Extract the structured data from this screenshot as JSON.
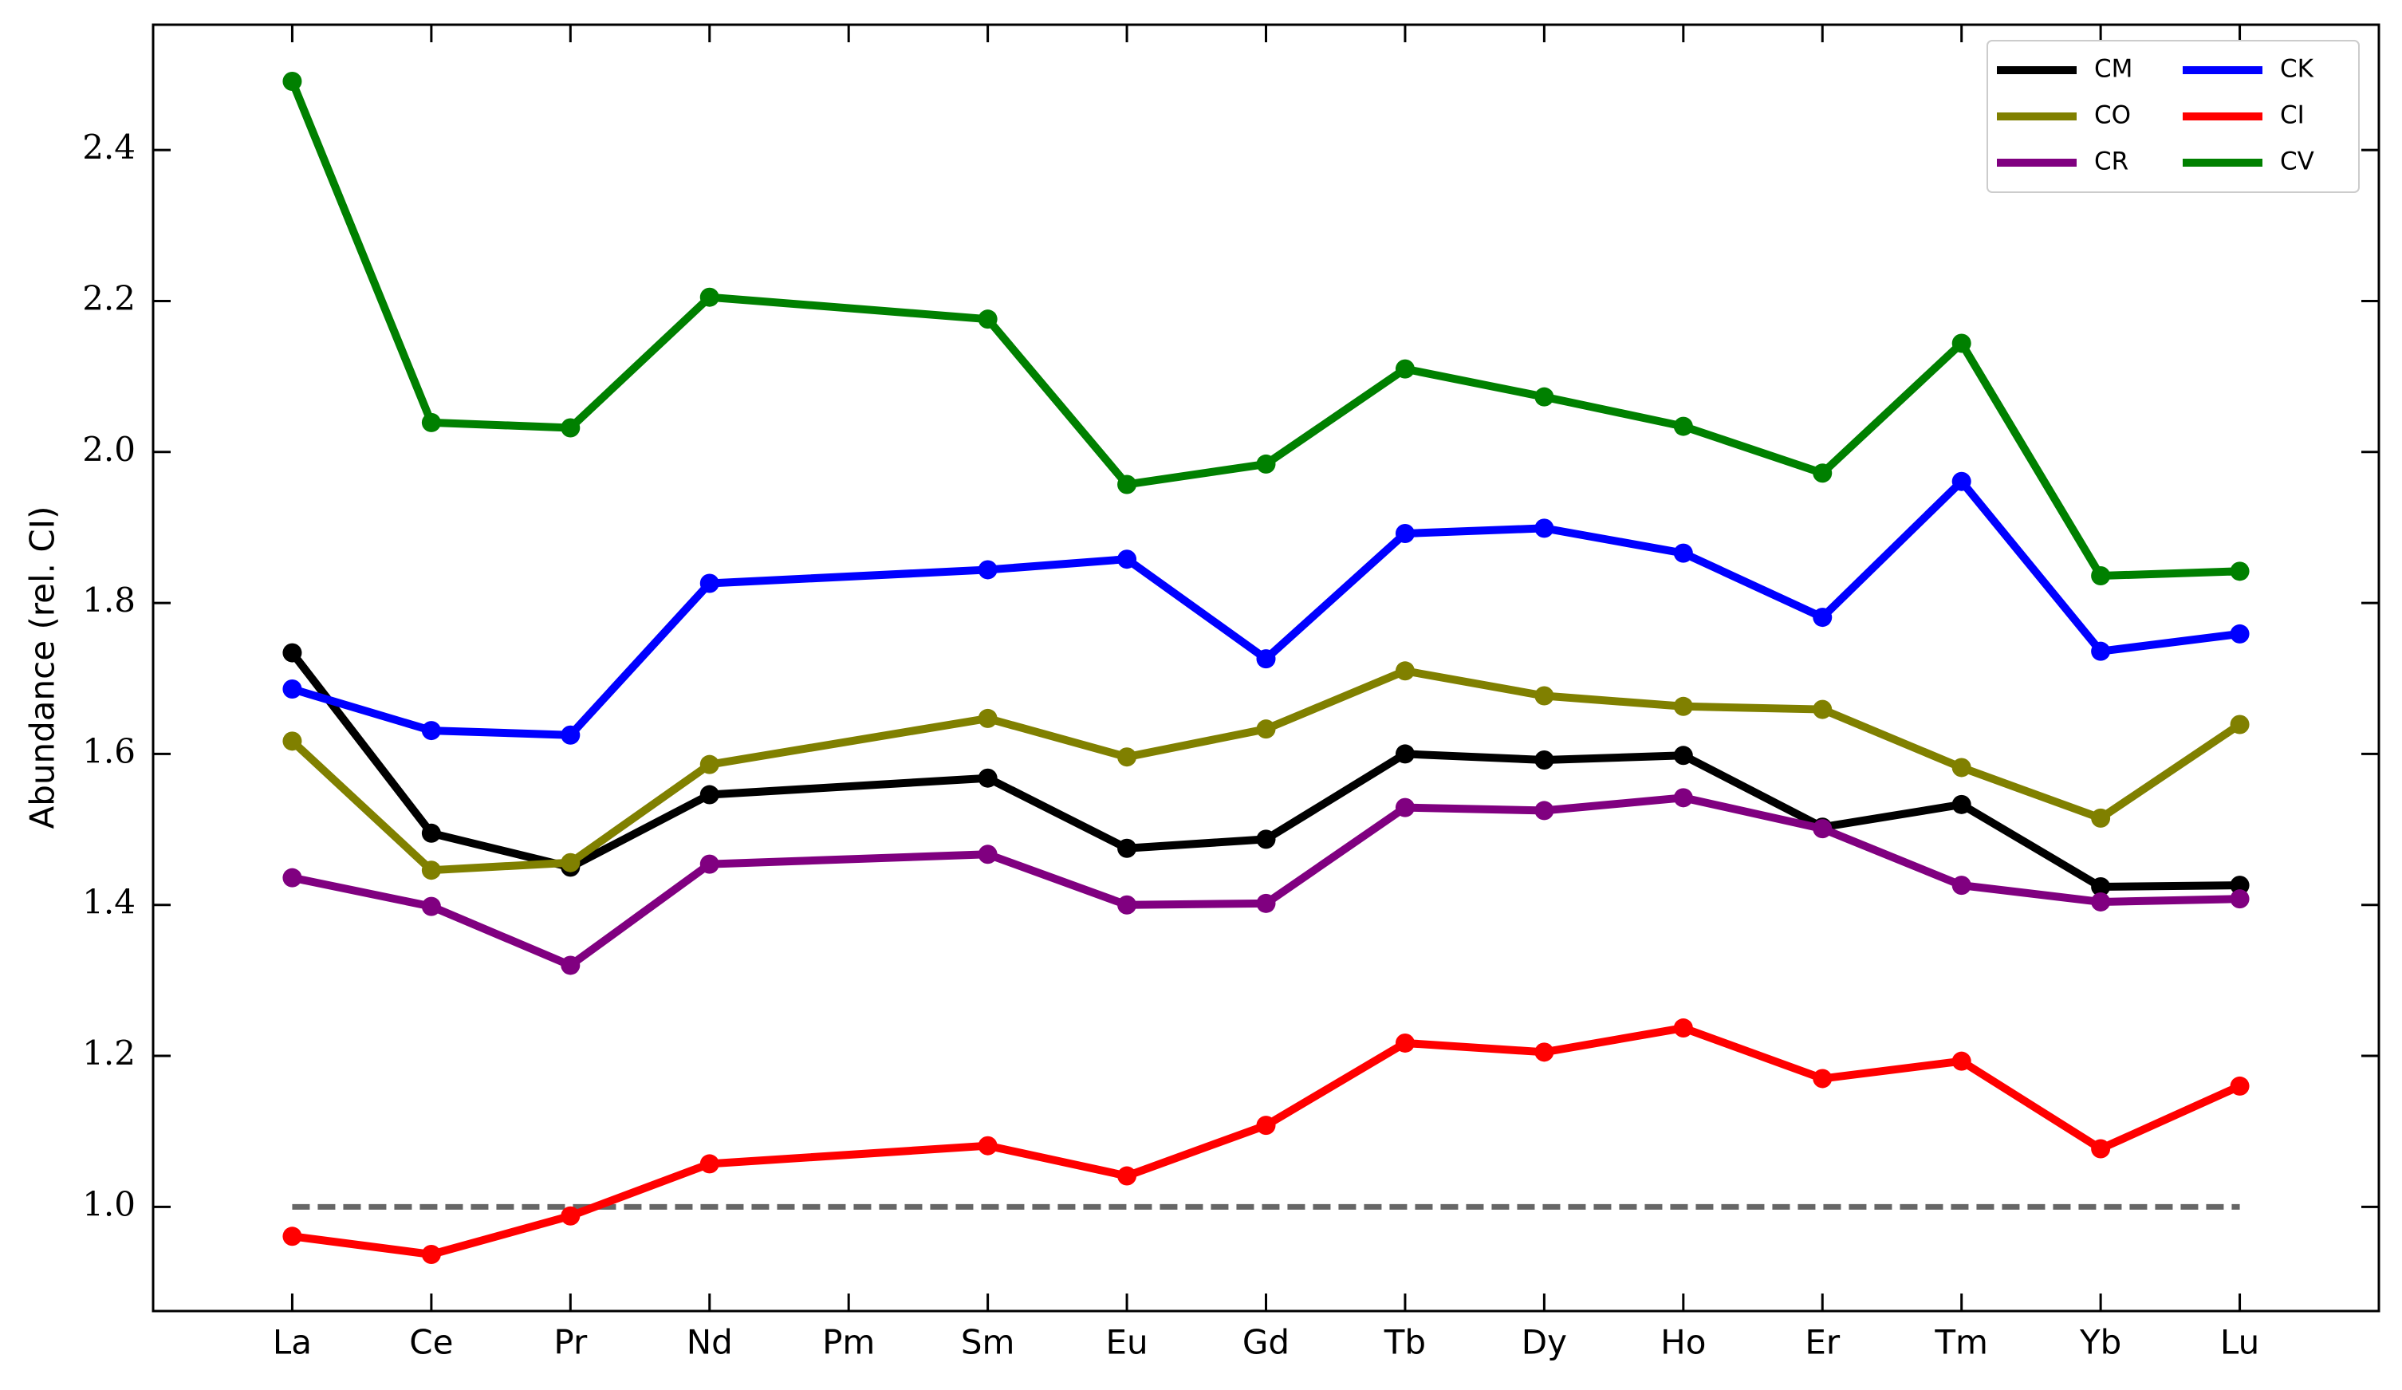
{
  "chart_data": {
    "type": "line",
    "y_label": "Abundance (rel. CI)",
    "categories": [
      "La",
      "Ce",
      "Pr",
      "Nd",
      "Pm",
      "Sm",
      "Eu",
      "Gd",
      "Tb",
      "Dy",
      "Ho",
      "Er",
      "Tm",
      "Yb",
      "Lu"
    ],
    "series": [
      {
        "name": "CM",
        "color": "#000000",
        "values": [
          1.734,
          1.495,
          1.45,
          1.546,
          null,
          1.568,
          1.475,
          1.487,
          1.6,
          1.592,
          1.598,
          1.503,
          1.533,
          1.424,
          1.426
        ]
      },
      {
        "name": "CO",
        "color": "#808000",
        "values": [
          1.617,
          1.446,
          1.456,
          1.586,
          null,
          1.647,
          1.596,
          1.633,
          1.71,
          1.677,
          1.663,
          1.659,
          1.582,
          1.515,
          1.639
        ]
      },
      {
        "name": "CR",
        "color": "#800080",
        "values": [
          1.436,
          1.398,
          1.32,
          1.454,
          null,
          1.467,
          1.4,
          1.402,
          1.529,
          1.525,
          1.542,
          1.501,
          1.426,
          1.404,
          1.408
        ]
      },
      {
        "name": "CK",
        "color": "#0000ff",
        "values": [
          1.686,
          1.631,
          1.625,
          1.826,
          null,
          1.844,
          1.858,
          1.726,
          1.892,
          1.899,
          1.866,
          1.781,
          1.961,
          1.736,
          1.759
        ]
      },
      {
        "name": "CI",
        "color": "#ff0000",
        "values": [
          0.961,
          0.937,
          0.988,
          1.057,
          null,
          1.081,
          1.041,
          1.108,
          1.217,
          1.205,
          1.237,
          1.17,
          1.193,
          1.077,
          1.16
        ]
      },
      {
        "name": "CV",
        "color": "#008000",
        "values": [
          2.491,
          2.039,
          2.032,
          2.205,
          null,
          2.176,
          1.957,
          1.984,
          2.11,
          2.073,
          2.034,
          1.972,
          2.144,
          1.836,
          1.842
        ]
      }
    ],
    "reference_line": {
      "value": 1,
      "color": "#666666"
    },
    "ylim": [
      0.862,
      2.566
    ],
    "yticks": [
      {
        "value": 1,
        "label": "1.0"
      },
      {
        "value": 1.2,
        "label": "1.2"
      },
      {
        "value": 1.4,
        "label": "1.4"
      },
      {
        "value": 1.6,
        "label": "1.6"
      },
      {
        "value": 1.8,
        "label": "1.8"
      },
      {
        "value": 2,
        "label": "2.0"
      },
      {
        "value": 2.2,
        "label": "2.2"
      },
      {
        "value": 2.4,
        "label": "2.4"
      }
    ],
    "grid": false,
    "legend": "upper right",
    "legend_ncol": 2
  }
}
